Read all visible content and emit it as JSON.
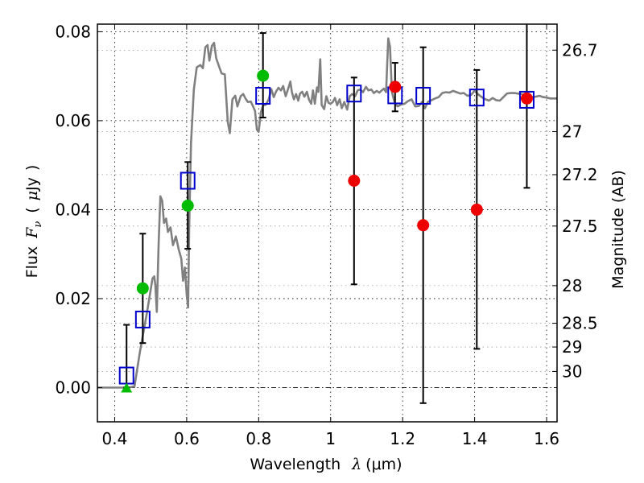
{
  "chart_data": {
    "type": "scatter",
    "title": "",
    "xlabel": "Wavelength  λ (μm)",
    "ylabel": "Flux  F_ν  ( μJy )",
    "ylabel_parts": {
      "prefix": "Flux",
      "symbol": "F",
      "subscript": "ν",
      "unit_open": "(",
      "unit_mu": "μ",
      "unit": "Jy",
      "unit_close": ")"
    },
    "xlabel_parts": {
      "prefix": "Wavelength",
      "symbol": "λ",
      "unit": "(μm)"
    },
    "right_ylabel": "Magnitude (AB)",
    "xlim": [
      0.352,
      1.629
    ],
    "ylim": [
      -0.0077,
      0.0817
    ],
    "grid": true,
    "x_ticks": [
      {
        "value": 0.4,
        "label": "0.4"
      },
      {
        "value": 0.6,
        "label": "0.6"
      },
      {
        "value": 0.8,
        "label": "0.8"
      },
      {
        "value": 1.0,
        "label": "1"
      },
      {
        "value": 1.2,
        "label": "1.2"
      },
      {
        "value": 1.4,
        "label": "1.4"
      },
      {
        "value": 1.6,
        "label": "1.6"
      }
    ],
    "y_ticks": [
      {
        "value": 0.0,
        "label": "0.00"
      },
      {
        "value": 0.02,
        "label": "0.02"
      },
      {
        "value": 0.04,
        "label": "0.04"
      },
      {
        "value": 0.06,
        "label": "0.06"
      },
      {
        "value": 0.08,
        "label": "0.08"
      }
    ],
    "right_ticks": [
      {
        "mag": 26.7,
        "label": "26.7"
      },
      {
        "mag": 27.0,
        "label": "27"
      },
      {
        "mag": 27.2,
        "label": "27.2"
      },
      {
        "mag": 27.5,
        "label": "27.5"
      },
      {
        "mag": 28.0,
        "label": "28"
      },
      {
        "mag": 28.5,
        "label": "28.5"
      },
      {
        "mag": 29.0,
        "label": "29"
      },
      {
        "mag": 30.0,
        "label": "30"
      }
    ],
    "ab_zeropoint_ujy": 23.9,
    "zero_line": 0.0,
    "colors": {
      "spectrum": "#808080",
      "model_square": "#0000cc",
      "photometry_green": "#00bb00",
      "photometry_red": "#ee0000",
      "errorbar": "#000000"
    },
    "series": [
      {
        "name": "model spectrum",
        "kind": "line",
        "points": [
          [
            0.352,
            0.0
          ],
          [
            0.44,
            0.0
          ],
          [
            0.455,
            0.0003
          ],
          [
            0.47,
            0.008
          ],
          [
            0.49,
            0.017
          ],
          [
            0.5,
            0.022
          ],
          [
            0.505,
            0.0245
          ],
          [
            0.51,
            0.025
          ],
          [
            0.513,
            0.023
          ],
          [
            0.517,
            0.017
          ],
          [
            0.522,
            0.032
          ],
          [
            0.527,
            0.043
          ],
          [
            0.532,
            0.042
          ],
          [
            0.537,
            0.037
          ],
          [
            0.543,
            0.038
          ],
          [
            0.548,
            0.035
          ],
          [
            0.555,
            0.036
          ],
          [
            0.562,
            0.032
          ],
          [
            0.57,
            0.034
          ],
          [
            0.578,
            0.031
          ],
          [
            0.585,
            0.029
          ],
          [
            0.59,
            0.024
          ],
          [
            0.595,
            0.027
          ],
          [
            0.6,
            0.021
          ],
          [
            0.604,
            0.018
          ],
          [
            0.607,
            0.036
          ],
          [
            0.612,
            0.055
          ],
          [
            0.62,
            0.067
          ],
          [
            0.628,
            0.072
          ],
          [
            0.638,
            0.0725
          ],
          [
            0.645,
            0.0718
          ],
          [
            0.652,
            0.0765
          ],
          [
            0.658,
            0.077
          ],
          [
            0.663,
            0.0735
          ],
          [
            0.67,
            0.0768
          ],
          [
            0.676,
            0.0775
          ],
          [
            0.682,
            0.074
          ],
          [
            0.69,
            0.0722
          ],
          [
            0.697,
            0.0706
          ],
          [
            0.706,
            0.0704
          ],
          [
            0.714,
            0.0598
          ],
          [
            0.72,
            0.0572
          ],
          [
            0.727,
            0.0648
          ],
          [
            0.735,
            0.0656
          ],
          [
            0.741,
            0.0632
          ],
          [
            0.75,
            0.0655
          ],
          [
            0.757,
            0.066
          ],
          [
            0.764,
            0.0649
          ],
          [
            0.77,
            0.0642
          ],
          [
            0.778,
            0.0643
          ],
          [
            0.784,
            0.0633
          ],
          [
            0.79,
            0.0622
          ],
          [
            0.795,
            0.058
          ],
          [
            0.8,
            0.0575
          ],
          [
            0.806,
            0.0618
          ],
          [
            0.812,
            0.0634
          ],
          [
            0.82,
            0.0636
          ],
          [
            0.828,
            0.0648
          ],
          [
            0.835,
            0.0671
          ],
          [
            0.842,
            0.0653
          ],
          [
            0.848,
            0.0665
          ],
          [
            0.855,
            0.0674
          ],
          [
            0.862,
            0.0668
          ],
          [
            0.868,
            0.0678
          ],
          [
            0.875,
            0.0655
          ],
          [
            0.882,
            0.0672
          ],
          [
            0.888,
            0.0688
          ],
          [
            0.892,
            0.0665
          ],
          [
            0.898,
            0.0648
          ],
          [
            0.904,
            0.066
          ],
          [
            0.91,
            0.0645
          ],
          [
            0.915,
            0.0661
          ],
          [
            0.921,
            0.0665
          ],
          [
            0.927,
            0.0654
          ],
          [
            0.934,
            0.0665
          ],
          [
            0.94,
            0.0647
          ],
          [
            0.946,
            0.0638
          ],
          [
            0.951,
            0.0668
          ],
          [
            0.956,
            0.0638
          ],
          [
            0.962,
            0.0675
          ],
          [
            0.966,
            0.0665
          ],
          [
            0.971,
            0.0738
          ],
          [
            0.975,
            0.0635
          ],
          [
            0.982,
            0.0626
          ],
          [
            0.988,
            0.0655
          ],
          [
            0.994,
            0.064
          ],
          [
            1.0,
            0.0638
          ],
          [
            1.006,
            0.0642
          ],
          [
            1.012,
            0.0651
          ],
          [
            1.018,
            0.0635
          ],
          [
            1.025,
            0.0648
          ],
          [
            1.031,
            0.0628
          ],
          [
            1.038,
            0.0642
          ],
          [
            1.046,
            0.0625
          ],
          [
            1.053,
            0.0655
          ],
          [
            1.06,
            0.066
          ],
          [
            1.068,
            0.0655
          ],
          [
            1.075,
            0.0668
          ],
          [
            1.082,
            0.067
          ],
          [
            1.09,
            0.0664
          ],
          [
            1.098,
            0.0676
          ],
          [
            1.105,
            0.0668
          ],
          [
            1.113,
            0.067
          ],
          [
            1.12,
            0.0662
          ],
          [
            1.128,
            0.0667
          ],
          [
            1.135,
            0.0663
          ],
          [
            1.142,
            0.0668
          ],
          [
            1.148,
            0.0672
          ],
          [
            1.154,
            0.0664
          ],
          [
            1.16,
            0.0785
          ],
          [
            1.165,
            0.0766
          ],
          [
            1.17,
            0.0665
          ],
          [
            1.178,
            0.064
          ],
          [
            1.186,
            0.0632
          ],
          [
            1.195,
            0.0636
          ],
          [
            1.205,
            0.0638
          ],
          [
            1.215,
            0.0644
          ],
          [
            1.225,
            0.0648
          ],
          [
            1.235,
            0.0632
          ],
          [
            1.245,
            0.0633
          ],
          [
            1.254,
            0.0642
          ],
          [
            1.262,
            0.0628
          ],
          [
            1.27,
            0.0642
          ],
          [
            1.28,
            0.0646
          ],
          [
            1.29,
            0.065
          ],
          [
            1.3,
            0.0653
          ],
          [
            1.31,
            0.0662
          ],
          [
            1.32,
            0.0664
          ],
          [
            1.33,
            0.0663
          ],
          [
            1.34,
            0.0667
          ],
          [
            1.35,
            0.0664
          ],
          [
            1.36,
            0.0661
          ],
          [
            1.37,
            0.0662
          ],
          [
            1.38,
            0.0656
          ],
          [
            1.39,
            0.0658
          ],
          [
            1.4,
            0.0667
          ],
          [
            1.41,
            0.0659
          ],
          [
            1.42,
            0.0653
          ],
          [
            1.43,
            0.0648
          ],
          [
            1.44,
            0.0645
          ],
          [
            1.45,
            0.0651
          ],
          [
            1.46,
            0.0646
          ],
          [
            1.47,
            0.0645
          ],
          [
            1.48,
            0.0653
          ],
          [
            1.49,
            0.0661
          ],
          [
            1.5,
            0.0662
          ],
          [
            1.51,
            0.0662
          ],
          [
            1.52,
            0.0661
          ],
          [
            1.53,
            0.066
          ],
          [
            1.54,
            0.0656
          ],
          [
            1.55,
            0.0654
          ],
          [
            1.56,
            0.0653
          ],
          [
            1.57,
            0.0654
          ],
          [
            1.58,
            0.0656
          ],
          [
            1.59,
            0.0653
          ],
          [
            1.6,
            0.0652
          ],
          [
            1.61,
            0.065
          ],
          [
            1.629,
            0.065
          ]
        ]
      },
      {
        "name": "error bars",
        "kind": "errorbar",
        "points": [
          {
            "x": 0.433,
            "lo": 0.0,
            "hi": 0.0141
          },
          {
            "x": 0.478,
            "lo": 0.01,
            "hi": 0.0346
          },
          {
            "x": 0.603,
            "lo": 0.0312,
            "hi": 0.0507
          },
          {
            "x": 0.812,
            "lo": 0.0607,
            "hi": 0.0797
          },
          {
            "x": 1.065,
            "lo": 0.0232,
            "hi": 0.0697
          },
          {
            "x": 1.179,
            "lo": 0.0621,
            "hi": 0.073
          },
          {
            "x": 1.257,
            "lo": -0.0035,
            "hi": 0.0765
          },
          {
            "x": 1.406,
            "lo": 0.0087,
            "hi": 0.0714
          },
          {
            "x": 1.545,
            "lo": 0.0449,
            "hi": 0.085
          }
        ]
      },
      {
        "name": "model photometry",
        "kind": "square",
        "x": [
          0.433,
          0.478,
          0.603,
          0.812,
          1.065,
          1.179,
          1.257,
          1.406,
          1.545
        ],
        "y": [
          0.0027,
          0.0153,
          0.0465,
          0.0656,
          0.0661,
          0.0657,
          0.0656,
          0.0652,
          0.0647
        ]
      },
      {
        "name": "detections",
        "kind": "circle-green",
        "x": [
          0.478,
          0.603,
          0.812
        ],
        "y": [
          0.0223,
          0.0409,
          0.0701
        ]
      },
      {
        "name": "upper limit",
        "kind": "triangle-green",
        "x": [
          0.433
        ],
        "y": [
          0.0
        ]
      },
      {
        "name": "infrared photometry",
        "kind": "circle-red",
        "x": [
          1.065,
          1.179,
          1.257,
          1.406,
          1.545
        ],
        "y": [
          0.0465,
          0.0676,
          0.0365,
          0.04,
          0.065
        ]
      }
    ]
  }
}
